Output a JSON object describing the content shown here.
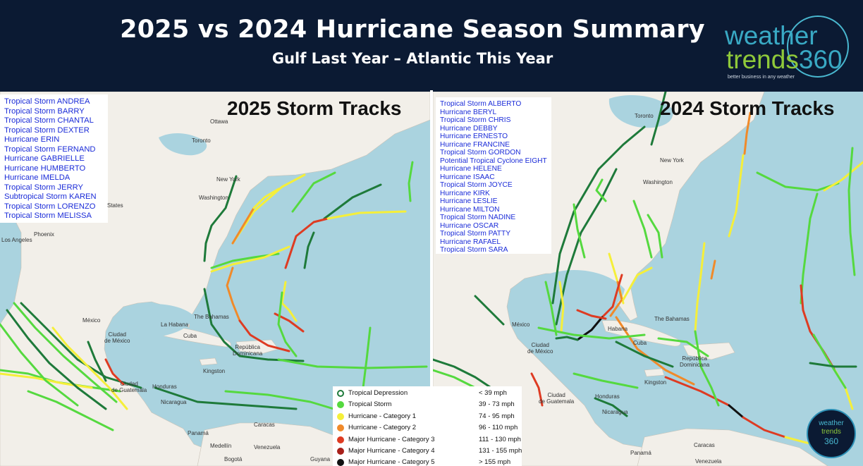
{
  "header": {
    "title": "2025 vs 2024 Hurricane Season Summary",
    "subtitle": "Gulf Last Year – Atlantic This Year"
  },
  "logo": {
    "word_1": "weather",
    "word_2": "trends",
    "number": "360",
    "tagline": "better business in any weather"
  },
  "colors": {
    "header_bg": "#0b1a33",
    "ocean": "#aad3df",
    "land": "#f2efe9",
    "storm_text": "#1a2bd8",
    "tropical_storm": "#55d93f",
    "hurricane_cat1": "#f5ef3a",
    "hurricane_cat2": "#f08a2a",
    "major_cat3": "#de3b22",
    "major_cat4": "#a8201a",
    "major_cat5": "#111111",
    "long_track": "#1e7a3a"
  },
  "panel_2025": {
    "heading": "2025 Storm Tracks",
    "storms": [
      "Tropical Storm ANDREA",
      "Tropical Storm BARRY",
      "Tropical Storm CHANTAL",
      "Tropical Storm DEXTER",
      "Hurricane ERIN",
      "Tropical Storm FERNAND",
      "Hurricane GABRIELLE",
      "Hurricane HUMBERTO",
      "Hurricane IMELDA",
      "Tropical Storm JERRY",
      "Subtropical Storm KAREN",
      "Tropical Storm LORENZO",
      "Tropical Storm MELISSA"
    ],
    "places": {
      "ottawa": "Ottawa",
      "toronto": "Toronto",
      "new_york": "New York",
      "washington": "Washington",
      "states": "States",
      "phoenix": "Phoenix",
      "los_angeles": "Los Angeles",
      "the_bahamas": "The Bahamas",
      "mexico": "México",
      "la_habana": "La Habana",
      "cuba": "Cuba",
      "ciudad_de_mexico": "Ciudad\nde México",
      "kingston": "Kingston",
      "republica_dominicana": "República\nDominicana",
      "ciudad_de_guatemala": "Ciudad\nde Guatemala",
      "honduras": "Honduras",
      "nicaragua": "Nicaragua",
      "panama": "Panamá",
      "caracas": "Caracas",
      "medellin": "Medellín",
      "venezuela": "Venezuela",
      "bogota": "Bogotá",
      "guyana": "Guyana"
    }
  },
  "panel_2024": {
    "heading": "2024 Storm Tracks",
    "storms": [
      "Tropical Storm ALBERTO",
      "Hurricane BERYL",
      "Tropical Storm CHRIS",
      "Hurricane DEBBY",
      "Hurricane ERNESTO",
      "Hurricane FRANCINE",
      "Tropical Storm GORDON",
      "Potential Tropical Cyclone EIGHT",
      "Hurricane HELENE",
      "Hurricane ISAAC",
      "Tropical Storm JOYCE",
      "Hurricane KIRK",
      "Hurricane LESLIE",
      "Hurricane MILTON",
      "Tropical Storm NADINE",
      "Hurricane OSCAR",
      "Tropical Storm PATTY",
      "Hurricane RAFAEL",
      "Tropical Storm SARA"
    ],
    "places": {
      "toronto": "Toronto",
      "new_york": "New York",
      "washington": "Washington",
      "mexico": "México",
      "habana": "Habana",
      "cuba": "Cuba",
      "the_bahamas": "The Bahamas",
      "ciudad_de_mexico": "Ciudad\nde México",
      "kingston": "Kingston",
      "republica_dominicana": "República\nDominicana",
      "ciudad_de_guatemala": "Ciudad\nde Guatemala",
      "honduras": "Honduras",
      "nicaragua": "Nicaragua",
      "caracas": "Caracas",
      "venezuela": "Venezuela",
      "panama": "Panamá"
    }
  },
  "legend": [
    {
      "label": "Tropical Depression",
      "range": "< 39 mph",
      "color": "#1e7a3a",
      "hollow": true
    },
    {
      "label": "Tropical Storm",
      "range": "39 - 73 mph",
      "color": "#55d93f",
      "hollow": false
    },
    {
      "label": "Hurricane - Category 1",
      "range": "74 - 95 mph",
      "color": "#f5ef3a",
      "hollow": false
    },
    {
      "label": "Hurricane - Category 2",
      "range": "96 - 110 mph",
      "color": "#f08a2a",
      "hollow": false
    },
    {
      "label": "Major Hurricane - Category 3",
      "range": "111 - 130 mph",
      "color": "#de3b22",
      "hollow": false
    },
    {
      "label": "Major Hurricane - Category 4",
      "range": "131 - 155 mph",
      "color": "#a8201a",
      "hollow": false
    },
    {
      "label": "Major Hurricane - Category 5",
      "range": "> 155 mph",
      "color": "#111111",
      "hollow": false
    }
  ],
  "badge": {
    "word_1": "weather",
    "word_2": "trends",
    "number": "360"
  }
}
